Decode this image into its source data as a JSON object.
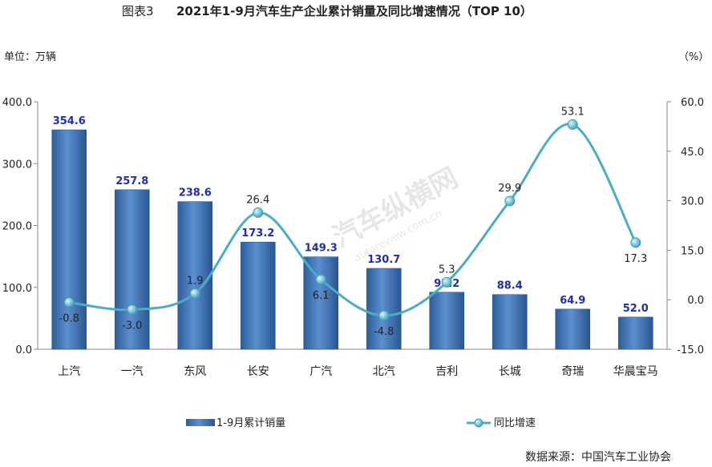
{
  "header": {
    "figure_label": "图表3",
    "title": "2021年1-9月汽车生产企业累计销量及同比增速情况（TOP 10）",
    "left_unit": "单位：万辆",
    "right_unit": "（%）",
    "source": "数据来源：中国汽车工业协会"
  },
  "watermark": {
    "text": "汽车纵横网",
    "url": "autoreview.com.cn"
  },
  "colors": {
    "bar": "#4f81bd",
    "bar_label": "#1f2ea8",
    "line": "#4bacc6",
    "marker": "#4bacc6"
  },
  "chart_data": {
    "type": "bar",
    "categories": [
      "上汽",
      "一汽",
      "东风",
      "长安",
      "广汽",
      "北汽",
      "吉利",
      "长城",
      "奇瑞",
      "华晨宝马"
    ],
    "series": [
      {
        "name": "1-9月累计销量",
        "type": "bar",
        "axis": "left",
        "values": [
          354.6,
          257.8,
          238.6,
          173.2,
          149.3,
          130.7,
          92.2,
          88.4,
          64.9,
          52.0
        ],
        "labels": [
          "354.6",
          "257.8",
          "238.6",
          "173.2",
          "149.3",
          "130.7",
          "92.2",
          "88.4",
          "64.9",
          "52.0"
        ]
      },
      {
        "name": "同比增速",
        "type": "line",
        "axis": "right",
        "values": [
          -0.8,
          -3.0,
          1.9,
          26.4,
          6.1,
          -4.8,
          5.3,
          29.9,
          53.1,
          17.3
        ],
        "labels": [
          "-0.8",
          "-3.0",
          "1.9",
          "26.4",
          "6.1",
          "-4.8",
          "5.3",
          "29.9",
          "53.1",
          "17.3"
        ]
      }
    ],
    "y_left": {
      "min": 0,
      "max": 400,
      "ticks": [
        "0.0",
        "100.0",
        "200.0",
        "300.0",
        "400.0"
      ]
    },
    "y_right": {
      "min": -15,
      "max": 60,
      "ticks": [
        "-15.0",
        "0.0",
        "15.0",
        "30.0",
        "45.0",
        "60.0"
      ]
    },
    "grid": false,
    "legend_position": "bottom"
  }
}
